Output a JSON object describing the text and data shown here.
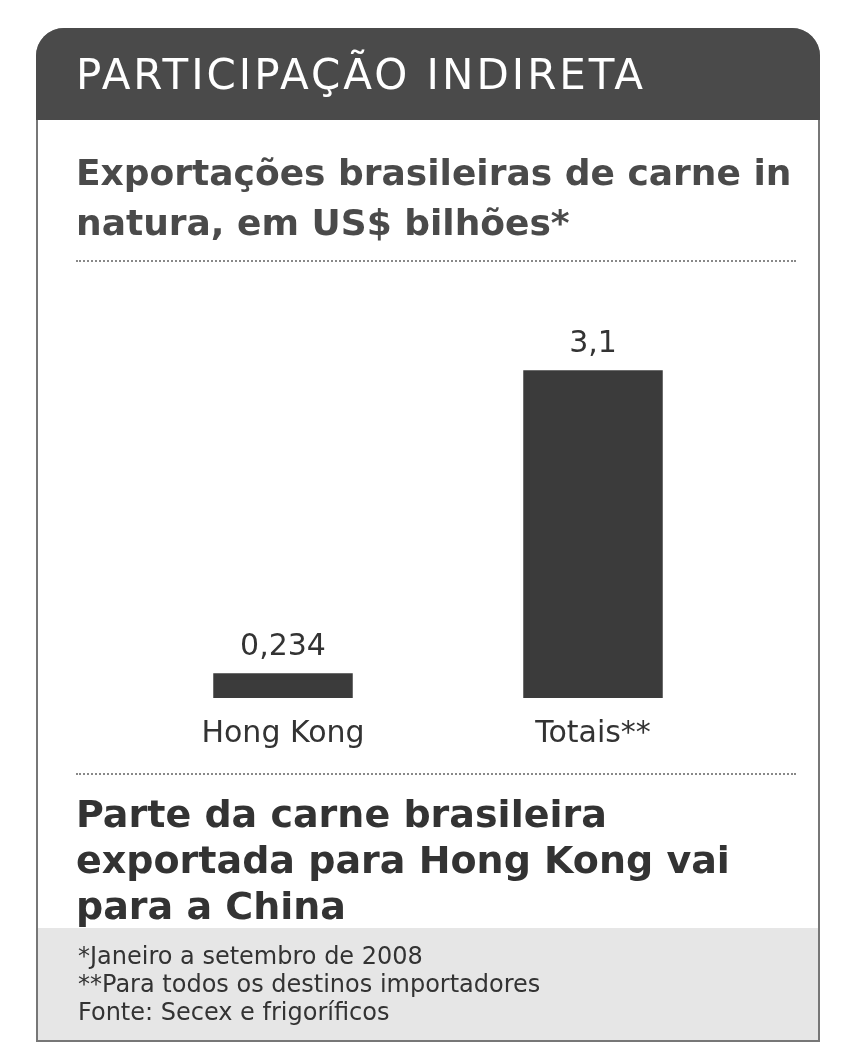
{
  "chart_data": {
    "type": "bar",
    "title": "PARTICIPAÇÃO INDIRETA",
    "subtitle": "Exportações brasileiras de carne in natura, em US$ bilhões*",
    "categories": [
      "Hong Kong",
      "Totais**"
    ],
    "values": [
      0.234,
      3.1
    ],
    "value_labels": [
      "0,234",
      "3,1"
    ],
    "color": "#3b3b3b",
    "annotations": [
      "Parte da carne brasileira exportada para Hong Kong vai para a China",
      "*Janeiro a setembro de 2008",
      "**Para todos os destinos importadores",
      "Fonte: Secex e frigoríficos"
    ]
  }
}
